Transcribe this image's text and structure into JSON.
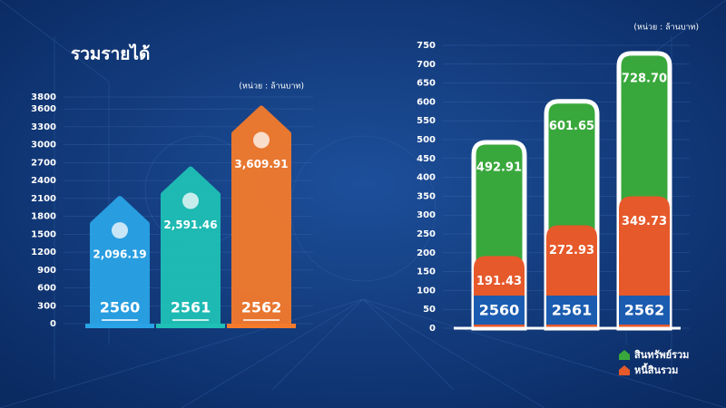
{
  "chart_data": [
    {
      "type": "bar",
      "title": "รวมรายได้",
      "unit": "(หน่วย : ล้านบาท)",
      "categories": [
        "2560",
        "2561",
        "2562"
      ],
      "values": [
        2096.19,
        2591.46,
        3609.91
      ],
      "value_labels": [
        "2,096.19",
        "2,591.46",
        "3,609.91"
      ],
      "colors": [
        "#2aa3e6",
        "#1fc0b6",
        "#f47a2c"
      ],
      "ylim": [
        0,
        3800
      ],
      "yticks": [
        0,
        300,
        600,
        900,
        1200,
        1500,
        1800,
        2100,
        2400,
        2700,
        3000,
        3300,
        3600,
        3800
      ]
    },
    {
      "type": "overlap_bar",
      "unit": "(หน่วย : ล้านบาท)",
      "categories": [
        "2560",
        "2561",
        "2562"
      ],
      "series": [
        {
          "name": "สินทรัพย์รวม",
          "color": "#39a83c",
          "values": [
            492.91,
            601.65,
            728.7
          ],
          "value_labels": [
            "492.91",
            "601.65",
            "728.70"
          ]
        },
        {
          "name": "หนี้สินรวม",
          "color": "#e6592a",
          "values": [
            191.43,
            272.93,
            349.73
          ],
          "value_labels": [
            "191.43",
            "272.93",
            "349.73"
          ]
        }
      ],
      "ylim": [
        0,
        750
      ],
      "yticks": [
        0,
        50,
        100,
        150,
        200,
        250,
        300,
        350,
        400,
        450,
        500,
        550,
        600,
        650,
        700,
        750
      ]
    }
  ]
}
